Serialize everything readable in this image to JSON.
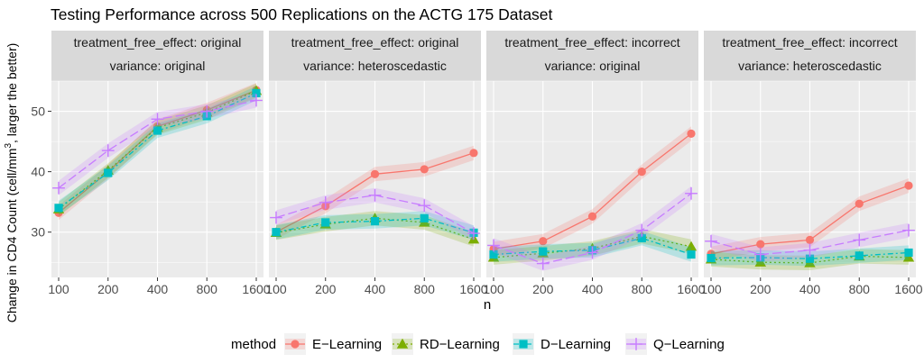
{
  "chart_data": {
    "type": "line",
    "title": "Testing Performance across 500 Replications on the ACTG 175 Dataset",
    "xlabel": "n",
    "ylabel": "Change in CD4 Count (cell/mm³, larger the better)",
    "ylabel_parts": {
      "main": "Change in CD4 Count (cell/mm",
      "sup": "3",
      "tail": ", larger the better)"
    },
    "x_categories": [
      "100",
      "200",
      "400",
      "800",
      "1600"
    ],
    "ylim": [
      22.5,
      55
    ],
    "yticks": [
      30,
      40,
      50
    ],
    "grid": true,
    "legend_position": "bottom",
    "legend_title": "method",
    "series_styles": [
      {
        "name": "E−Learning",
        "color": "#F8766D",
        "marker": "circle",
        "dash": "solid"
      },
      {
        "name": "RD−Learning",
        "color": "#7CAE00",
        "marker": "triangle",
        "dash": "dotted"
      },
      {
        "name": "D−Learning",
        "color": "#00BFC4",
        "marker": "square",
        "dash": "dotdash"
      },
      {
        "name": "Q−Learning",
        "color": "#C77CFF",
        "marker": "plus",
        "dash": "longdash"
      }
    ],
    "panels": [
      {
        "strip": [
          "treatment_free_effect: original",
          "variance: original"
        ],
        "series": [
          {
            "name": "E−Learning",
            "values": [
              33.2,
              40.0,
              47.5,
              50.2,
              53.5
            ]
          },
          {
            "name": "RD−Learning",
            "values": [
              33.8,
              40.2,
              47.3,
              49.8,
              53.4
            ]
          },
          {
            "name": "D−Learning",
            "values": [
              34.0,
              39.8,
              46.8,
              49.2,
              53.0
            ]
          },
          {
            "name": "Q−Learning",
            "values": [
              37.3,
              43.5,
              48.7,
              50.0,
              51.8
            ]
          }
        ]
      },
      {
        "strip": [
          "treatment_free_effect: original",
          "variance: heteroscedastic"
        ],
        "series": [
          {
            "name": "E−Learning",
            "values": [
              30.0,
              34.3,
              39.6,
              40.4,
              43.1
            ]
          },
          {
            "name": "RD−Learning",
            "values": [
              29.9,
              31.3,
              32.3,
              31.6,
              28.8
            ]
          },
          {
            "name": "D−Learning",
            "values": [
              30.0,
              31.6,
              31.8,
              32.3,
              29.9
            ]
          },
          {
            "name": "Q−Learning",
            "values": [
              32.4,
              34.9,
              36.1,
              34.4,
              29.8
            ]
          }
        ]
      },
      {
        "strip": [
          "treatment_free_effect: incorrect",
          "variance: original"
        ],
        "series": [
          {
            "name": "E−Learning",
            "values": [
              27.2,
              28.5,
              32.6,
              40.0,
              46.3
            ]
          },
          {
            "name": "RD−Learning",
            "values": [
              25.8,
              26.5,
              27.3,
              29.3,
              27.6
            ]
          },
          {
            "name": "D−Learning",
            "values": [
              26.3,
              26.8,
              27.0,
              29.0,
              26.3
            ]
          },
          {
            "name": "Q−Learning",
            "values": [
              27.8,
              24.8,
              26.6,
              30.3,
              36.4
            ]
          }
        ]
      },
      {
        "strip": [
          "treatment_free_effect: incorrect",
          "variance: heteroscedastic"
        ],
        "series": [
          {
            "name": "E−Learning",
            "values": [
              26.4,
              28.0,
              28.7,
              34.7,
              37.7
            ]
          },
          {
            "name": "RD−Learning",
            "values": [
              25.5,
              25.0,
              24.9,
              26.0,
              25.8
            ]
          },
          {
            "name": "D−Learning",
            "values": [
              25.7,
              25.8,
              25.6,
              26.1,
              26.6
            ]
          },
          {
            "name": "Q−Learning",
            "values": [
              28.5,
              26.3,
              27.0,
              28.7,
              30.3
            ]
          }
        ]
      }
    ]
  }
}
